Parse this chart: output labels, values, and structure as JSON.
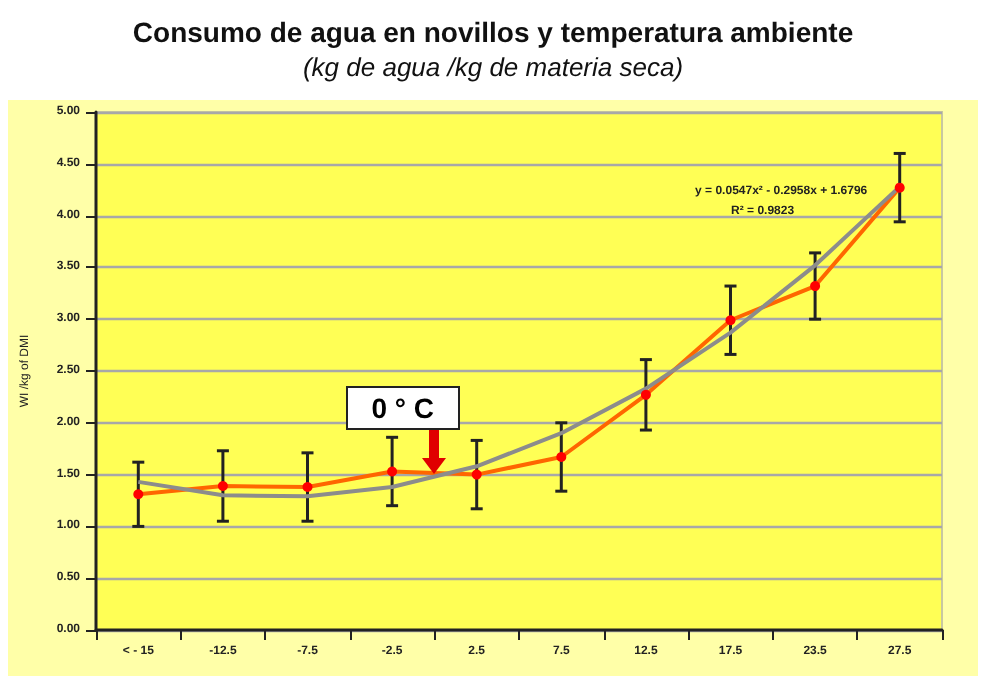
{
  "chart_data": {
    "type": "line",
    "title": "Consumo de agua en novillos y temperatura ambiente",
    "subtitle": "(kg de agua /kg de materia seca)",
    "ylabel": "WI /kg of DMI",
    "categories": [
      "< - 15",
      "-12.5",
      "-7.5",
      "-2.5",
      "2.5",
      "7.5",
      "12.5",
      "17.5",
      "23.5",
      "27.5"
    ],
    "series": [
      {
        "color": "#ff6600",
        "marker": "circle",
        "values": [
          1.31,
          1.39,
          1.38,
          1.53,
          1.5,
          1.67,
          2.27,
          2.99,
          3.32,
          4.27
        ],
        "errors": [
          0.31,
          0.34,
          0.33,
          0.33,
          0.33,
          0.33,
          0.34,
          0.33,
          0.32,
          0.33
        ]
      },
      {
        "color": "#8c8c8c",
        "marker": "none",
        "values": [
          1.43,
          1.3,
          1.29,
          1.38,
          1.58,
          1.9,
          2.33,
          2.87,
          3.52,
          4.28
        ]
      }
    ],
    "annotations": [
      "y = 0.0547x² - 0.2958x + 1.6796",
      "R² = 0.9823",
      "0 ° C"
    ],
    "ylim": [
      0,
      5
    ],
    "yticks": [
      {
        "value": 0,
        "label": "0.00"
      },
      {
        "value": 0.5,
        "label": "0.50"
      },
      {
        "value": 1,
        "label": "1.00"
      },
      {
        "value": 1.5,
        "label": "1.50"
      },
      {
        "value": 2,
        "label": "2.00"
      },
      {
        "value": 2.5,
        "label": "2.50"
      },
      {
        "value": 3,
        "label": "3.00"
      },
      {
        "value": 3.5,
        "label": "3.50"
      },
      {
        "value": 4,
        "label": "4.00"
      },
      {
        "value": 4.5,
        "label": "4.50"
      },
      {
        "value": 5,
        "label": "5.00"
      }
    ],
    "grid": "y"
  }
}
